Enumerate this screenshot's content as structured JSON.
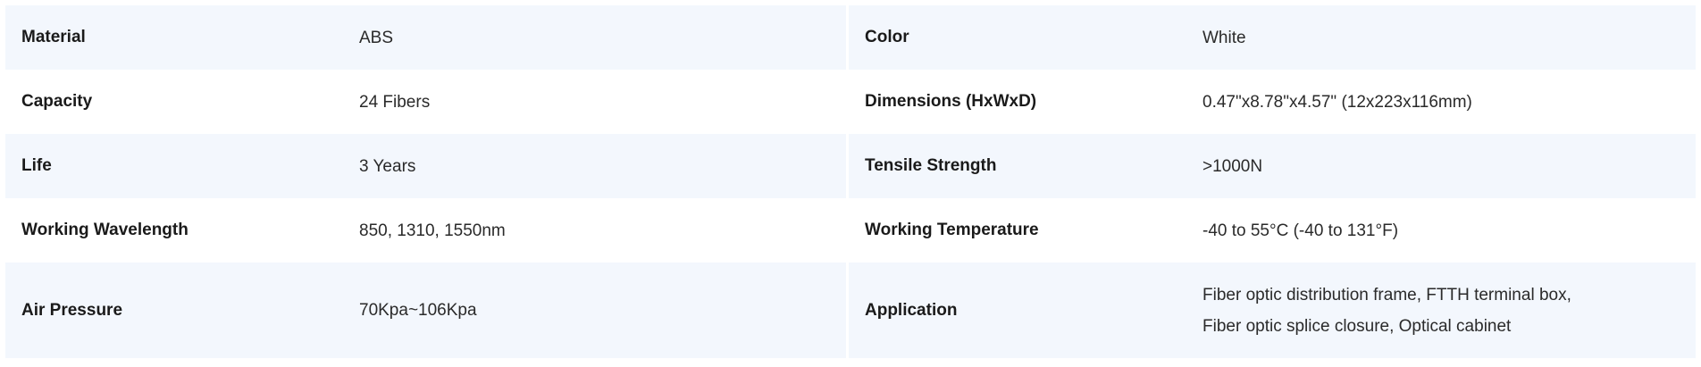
{
  "specs": [
    {
      "label": "Material",
      "value": "ABS"
    },
    {
      "label": "Color",
      "value": "White"
    },
    {
      "label": "Capacity",
      "value": "24 Fibers"
    },
    {
      "label": "Dimensions (HxWxD)",
      "value": "0.47\"x8.78\"x4.57\" (12x223x116mm)"
    },
    {
      "label": "Life",
      "value": "3 Years"
    },
    {
      "label": "Tensile Strength",
      "value": ">1000N"
    },
    {
      "label": "Working Wavelength",
      "value": "850, 1310, 1550nm"
    },
    {
      "label": "Working Temperature",
      "value": "-40 to 55°C (-40 to 131°F)"
    },
    {
      "label": "Air Pressure",
      "value": "70Kpa~106Kpa"
    },
    {
      "label": "Application",
      "value_lines": [
        "Fiber optic distribution frame, FTTH terminal box,",
        "Fiber optic splice closure, Optical cabinet"
      ]
    }
  ],
  "colors": {
    "stripe": "#f3f7fd",
    "text": "#1f1f1f"
  }
}
